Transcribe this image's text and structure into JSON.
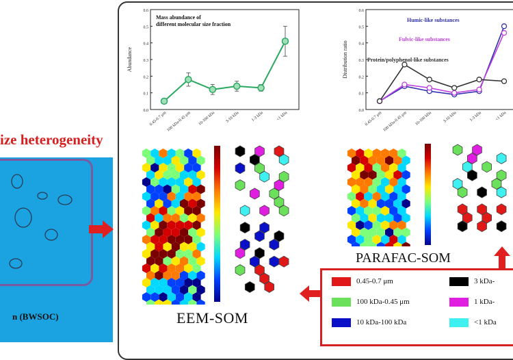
{
  "left_panel": {
    "title": "ize heterogeneity",
    "caption": "n (BWSOC)"
  },
  "labels": {
    "eem_som": "EEM-SOM",
    "parafac_som": "PARAFAC-SOM"
  },
  "legend": {
    "items": [
      {
        "label": "0.45-0.7 μm",
        "color": "#e01818"
      },
      {
        "label": "3 kDa-",
        "color": "#000000"
      },
      {
        "label": "100 kDa-0.45 μm",
        "color": "#6be05a"
      },
      {
        "label": "1 kDa-",
        "color": "#e01ee0"
      },
      {
        "label": "10 kDa-100 kDa",
        "color": "#0a10c8"
      },
      {
        "label": "<1 kDa",
        "color": "#3ff0f0"
      }
    ]
  },
  "chart_data": [
    {
      "type": "line",
      "title": "Mass abundance of different molecular size fraction",
      "ylabel": "Abundance",
      "categories": [
        "0.45-0.7 μm",
        "100 kDa-0.45 μm",
        "10-100 kDa",
        "3-10 kDa",
        "1-3 kDa",
        "<1 kDa"
      ],
      "values": [
        0.05,
        0.18,
        0.12,
        0.14,
        0.13,
        0.41
      ],
      "errors": [
        0.01,
        0.04,
        0.03,
        0.03,
        0.02,
        0.09
      ],
      "yticks": [
        "0.0",
        "0.1",
        "0.2",
        "0.3",
        "0.4",
        "0.5",
        "0.6"
      ],
      "ylim": [
        0,
        0.6
      ],
      "color": "#2aa860"
    },
    {
      "type": "line",
      "ylabel": "Distribution ratio",
      "categories": [
        "0.45-0.7 μm",
        "100 kDa-0.45 μm",
        "10-100 kDa",
        "3-10 kDa",
        "1-3 kDa",
        "<1 kDa"
      ],
      "yticks": [
        "0.0",
        "0.1",
        "0.2",
        "0.3",
        "0.4",
        "0.5",
        "0.6"
      ],
      "ylim": [
        0,
        0.6
      ],
      "series": [
        {
          "name": "Humic-like substances",
          "values": [
            0.05,
            0.14,
            0.11,
            0.09,
            0.11,
            0.5
          ],
          "color": "#3030b0"
        },
        {
          "name": "Fulvic-like substances",
          "values": [
            0.05,
            0.15,
            0.13,
            0.1,
            0.12,
            0.46
          ],
          "color": "#c040e0"
        },
        {
          "name": "Protein/polyphenol-like substances",
          "values": [
            0.05,
            0.27,
            0.18,
            0.13,
            0.18,
            0.17
          ],
          "color": "#303030"
        }
      ]
    }
  ]
}
